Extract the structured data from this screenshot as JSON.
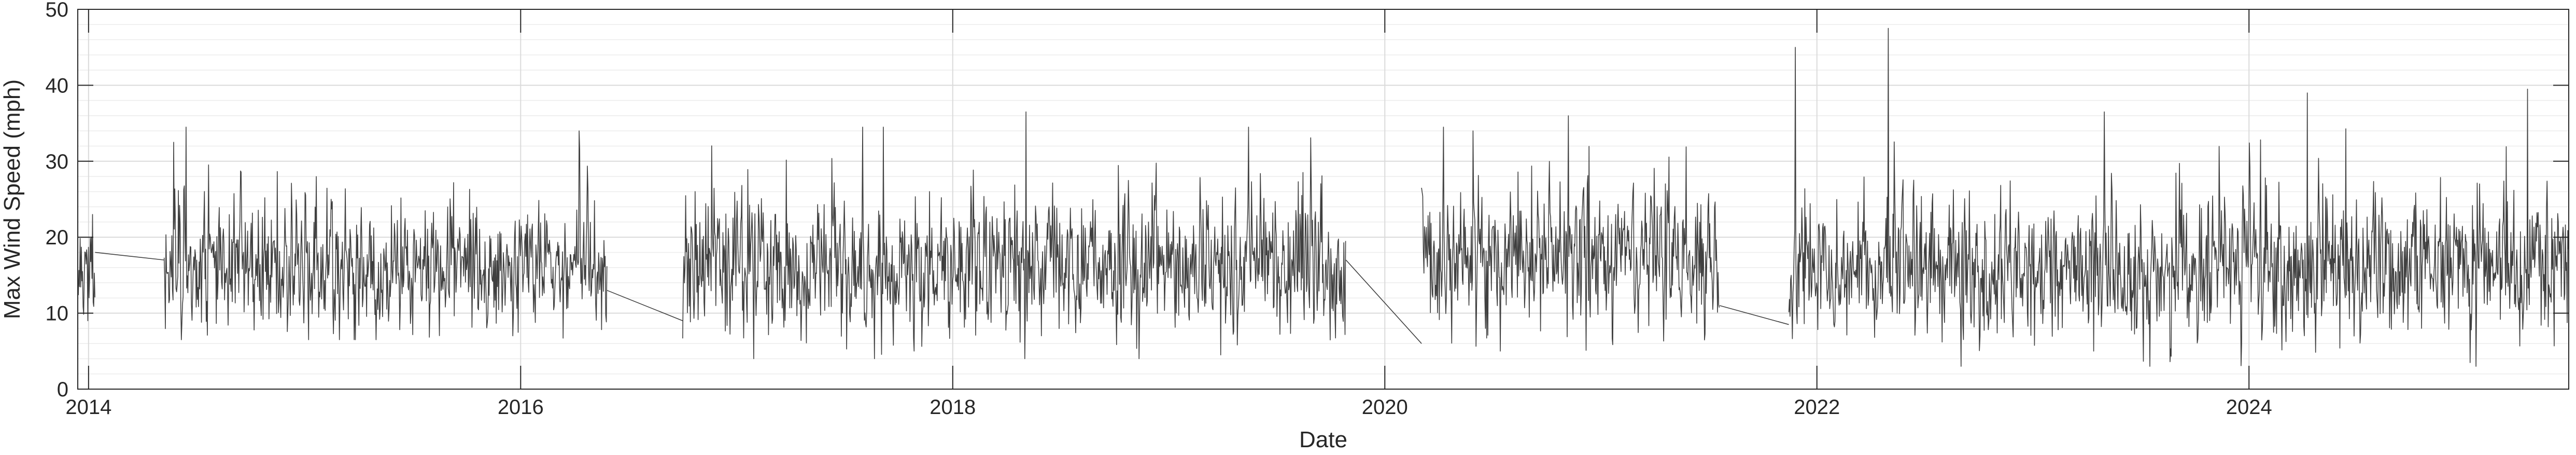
{
  "chart_data": {
    "type": "line",
    "title": "",
    "xlabel": "Date",
    "ylabel": "Max Wind Speed (mph)",
    "xlim": [
      2013.95,
      2025.48
    ],
    "ylim": [
      0,
      50
    ],
    "x_ticks": [
      2014,
      2016,
      2018,
      2020,
      2022,
      2024
    ],
    "x_tick_labels": [
      "2014",
      "2016",
      "2018",
      "2020",
      "2022",
      "2024"
    ],
    "y_ticks": [
      0,
      10,
      20,
      30,
      40,
      50
    ],
    "y_tick_labels": [
      "0",
      "10",
      "20",
      "30",
      "40",
      "50"
    ],
    "grid": true,
    "minor_grid": true,
    "line_color": "#404040",
    "series": [
      {
        "name": "Max Wind Speed",
        "segments": [
          {
            "start": 2013.95,
            "end": 2014.03,
            "mean": 16,
            "sd": 4.2,
            "min": 9,
            "max": 25,
            "seed": 11
          },
          {
            "start": 2014.35,
            "end": 2016.4,
            "mean": 16,
            "sd": 4.5,
            "min": 6.5,
            "max": 34.5,
            "seed": 23
          },
          {
            "start": 2016.75,
            "end": 2019.82,
            "mean": 16,
            "sd": 4.6,
            "min": 4,
            "max": 36.5,
            "seed": 37
          },
          {
            "start": 2020.17,
            "end": 2021.55,
            "mean": 17,
            "sd": 4.7,
            "min": 5,
            "max": 36,
            "seed": 41
          },
          {
            "start": 2021.87,
            "end": 2025.48,
            "mean": 16,
            "sd": 4.8,
            "min": 3,
            "max": 47.5,
            "seed": 53
          }
        ],
        "connectors": [
          {
            "x": [
              2014.03,
              2014.35
            ],
            "y": [
              18,
              17
            ]
          },
          {
            "x": [
              2016.4,
              2016.75
            ],
            "y": [
              13,
              9
            ]
          },
          {
            "x": [
              2019.82,
              2020.17
            ],
            "y": [
              17,
              6
            ]
          },
          {
            "x": [
              2021.55,
              2021.87
            ],
            "y": [
              11,
              8.5
            ]
          }
        ],
        "peaks": [
          {
            "x": 2014.45,
            "y": 34.5
          },
          {
            "x": 2016.27,
            "y": 34
          },
          {
            "x": 2017.68,
            "y": 34.5
          },
          {
            "x": 2018.34,
            "y": 36.5
          },
          {
            "x": 2020.27,
            "y": 34.5
          },
          {
            "x": 2020.85,
            "y": 36
          },
          {
            "x": 2021.9,
            "y": 45
          },
          {
            "x": 2022.33,
            "y": 47.5
          },
          {
            "x": 2023.33,
            "y": 36.5
          },
          {
            "x": 2024.27,
            "y": 39
          },
          {
            "x": 2025.29,
            "y": 39.5
          }
        ],
        "lows": [
          {
            "x": 2017.08,
            "y": 4
          },
          {
            "x": 2019.24,
            "y": 4.5
          },
          {
            "x": 2023.28,
            "y": 5
          },
          {
            "x": 2025.05,
            "y": 3
          }
        ]
      }
    ]
  }
}
